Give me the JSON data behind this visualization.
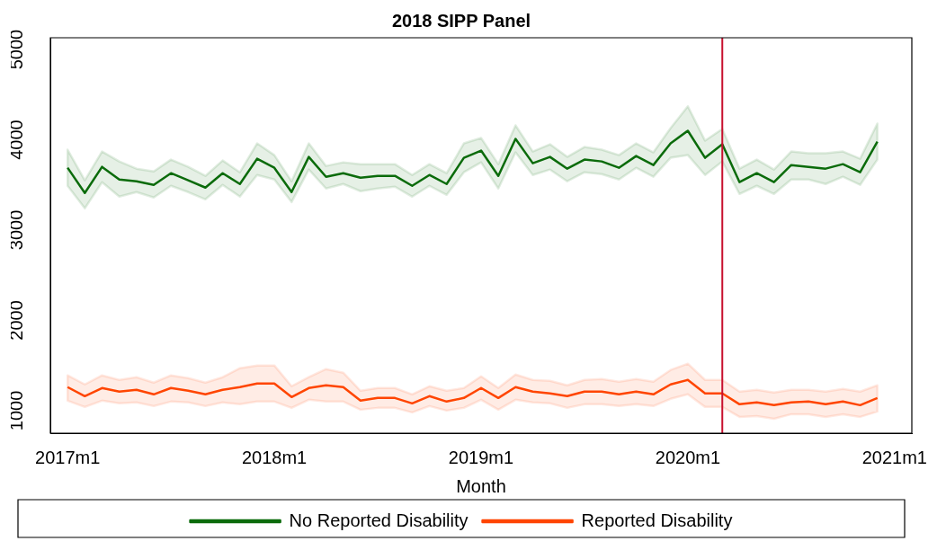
{
  "chart_data": {
    "type": "line",
    "title": "2018 SIPP Panel",
    "xlabel": "Month",
    "x": [
      "2017-01",
      "2017-02",
      "2017-03",
      "2017-04",
      "2017-05",
      "2017-06",
      "2017-07",
      "2017-08",
      "2017-09",
      "2017-10",
      "2017-11",
      "2017-12",
      "2018-01",
      "2018-02",
      "2018-03",
      "2018-04",
      "2018-05",
      "2018-06",
      "2018-07",
      "2018-08",
      "2018-09",
      "2018-10",
      "2018-11",
      "2018-12",
      "2019-01",
      "2019-02",
      "2019-03",
      "2019-04",
      "2019-05",
      "2019-06",
      "2019-07",
      "2019-08",
      "2019-09",
      "2019-10",
      "2019-11",
      "2019-12",
      "2020-01",
      "2020-02",
      "2020-03",
      "2020-04",
      "2020-05",
      "2020-06",
      "2020-07",
      "2020-08",
      "2020-09",
      "2020-10",
      "2020-11",
      "2020-12"
    ],
    "series": [
      {
        "name": "No Reported Disability",
        "color": "#0b6b0b",
        "values": [
          3690,
          3410,
          3700,
          3560,
          3540,
          3500,
          3630,
          3550,
          3470,
          3630,
          3510,
          3790,
          3690,
          3420,
          3810,
          3590,
          3630,
          3580,
          3600,
          3600,
          3490,
          3610,
          3510,
          3800,
          3880,
          3600,
          4010,
          3740,
          3810,
          3680,
          3780,
          3760,
          3690,
          3820,
          3720,
          3960,
          4100,
          3800,
          3950,
          3530,
          3630,
          3530,
          3720,
          3700,
          3680,
          3730,
          3640,
          3980
        ],
        "upper": [
          3890,
          3550,
          3870,
          3760,
          3680,
          3650,
          3780,
          3700,
          3600,
          3770,
          3640,
          3960,
          3830,
          3540,
          3960,
          3710,
          3750,
          3730,
          3730,
          3730,
          3610,
          3730,
          3630,
          3960,
          4020,
          3730,
          4160,
          3870,
          3950,
          3810,
          3920,
          3890,
          3830,
          3960,
          3860,
          4130,
          4370,
          3990,
          4120,
          3680,
          3780,
          3670,
          3870,
          3850,
          3850,
          3870,
          3790,
          4180
        ],
        "lower": [
          3490,
          3240,
          3530,
          3370,
          3420,
          3360,
          3490,
          3420,
          3340,
          3500,
          3370,
          3610,
          3560,
          3310,
          3670,
          3460,
          3510,
          3430,
          3460,
          3480,
          3370,
          3490,
          3390,
          3640,
          3750,
          3460,
          3860,
          3610,
          3670,
          3540,
          3640,
          3620,
          3560,
          3690,
          3590,
          3800,
          3830,
          3610,
          3760,
          3400,
          3490,
          3400,
          3560,
          3560,
          3510,
          3590,
          3500,
          3780
        ]
      },
      {
        "name": "Reported Disability",
        "color": "#ff4500",
        "values": [
          1260,
          1160,
          1250,
          1210,
          1230,
          1180,
          1250,
          1220,
          1180,
          1230,
          1260,
          1300,
          1300,
          1150,
          1250,
          1280,
          1260,
          1110,
          1140,
          1140,
          1080,
          1160,
          1100,
          1140,
          1250,
          1140,
          1260,
          1210,
          1190,
          1160,
          1210,
          1210,
          1180,
          1210,
          1180,
          1290,
          1340,
          1190,
          1190,
          1070,
          1090,
          1060,
          1090,
          1100,
          1070,
          1100,
          1060,
          1140
        ],
        "upper": [
          1390,
          1290,
          1390,
          1340,
          1370,
          1310,
          1390,
          1360,
          1310,
          1370,
          1470,
          1500,
          1500,
          1270,
          1370,
          1460,
          1420,
          1220,
          1250,
          1250,
          1180,
          1270,
          1220,
          1250,
          1380,
          1250,
          1400,
          1340,
          1330,
          1280,
          1340,
          1350,
          1320,
          1350,
          1320,
          1450,
          1520,
          1340,
          1340,
          1210,
          1230,
          1200,
          1230,
          1230,
          1210,
          1240,
          1210,
          1280
        ],
        "lower": [
          1110,
          1040,
          1110,
          1080,
          1090,
          1050,
          1100,
          1090,
          1050,
          1090,
          1070,
          1100,
          1100,
          1030,
          1120,
          1100,
          1100,
          1010,
          1030,
          1030,
          980,
          1050,
          1000,
          1030,
          1120,
          1010,
          1120,
          1090,
          1080,
          1030,
          1070,
          1070,
          1050,
          1070,
          1050,
          1130,
          1180,
          1040,
          1040,
          930,
          940,
          910,
          960,
          960,
          930,
          960,
          930,
          990
        ]
      }
    ],
    "xlim": [
      "2016-12",
      "2021-02"
    ],
    "xticks": [
      {
        "value": "2017-01",
        "label": "2017m1"
      },
      {
        "value": "2018-01",
        "label": "2018m1"
      },
      {
        "value": "2019-01",
        "label": "2019m1"
      },
      {
        "value": "2020-01",
        "label": "2020m1"
      },
      {
        "value": "2021-01",
        "label": "2021m1"
      }
    ],
    "ylim": [
      750,
      5130
    ],
    "yticks": [
      1000,
      2000,
      3000,
      4000,
      5000
    ],
    "ref_lines": [
      {
        "axis": "x",
        "value": "2020-03",
        "color": "#c8102e"
      }
    ],
    "grid": false,
    "legend": "bottom",
    "marker": "none",
    "line_style": "solid"
  }
}
